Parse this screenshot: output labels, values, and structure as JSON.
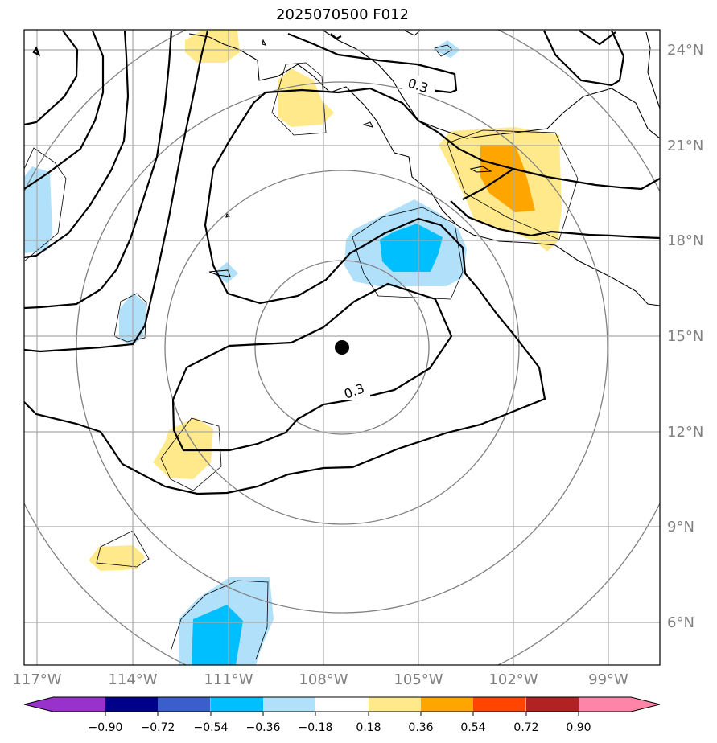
{
  "title": "2025070500 F012",
  "map": {
    "lon_labels": [
      "117°W",
      "114°W",
      "111°W",
      "108°W",
      "105°W",
      "102°W",
      "99°W"
    ],
    "lat_labels": [
      "24°N",
      "21°N",
      "18°N",
      "15°N",
      "12°N",
      "9°N",
      "6°N"
    ],
    "contour_labels": [
      "0.3",
      "0.3"
    ],
    "storm_center": "storm-center-marker"
  },
  "colorbar": {
    "ticks": [
      "−0.90",
      "−0.72",
      "−0.54",
      "−0.36",
      "−0.18",
      "0.18",
      "0.36",
      "0.54",
      "0.72",
      "0.90"
    ],
    "colors": {
      "lt_-0.90": "#9932cc",
      "-0.90_-0.72": "#00008b",
      "-0.72_-0.54": "#3a5fcd",
      "-0.54_-0.36": "#00bfff",
      "-0.36_-0.18": "#b0e0fa",
      "-0.18_0.18": "#ffffff",
      "0.18_0.36": "#ffe98a",
      "0.36_0.54": "#ffa500",
      "0.54_0.72": "#ff4500",
      "0.72_0.90": "#b22222",
      "gt_0.90": "#ff85a8"
    }
  }
}
